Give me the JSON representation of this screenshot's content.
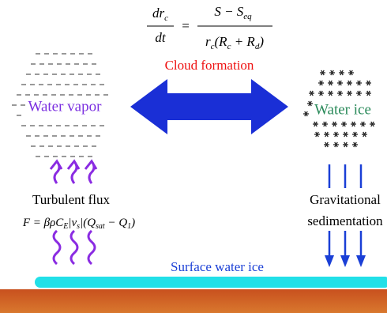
{
  "equation": {
    "lhs_numerator": [
      "dr",
      "c"
    ],
    "lhs_denominator": "dt",
    "equals": "=",
    "rhs_numerator": [
      "S − S",
      "eq"
    ],
    "rhs_denominator": [
      "r",
      "c",
      "(R",
      "c",
      " + R",
      "d",
      ")"
    ]
  },
  "labels": {
    "cloud_formation": "Cloud formation",
    "water_vapor": "Water vapor",
    "water_ice": "Water ice",
    "turbulent_flux": "Turbulent flux",
    "gravitational": "Gravitational",
    "sedimentation": "sedimentation",
    "surface_water_ice": "Surface water ice"
  },
  "flux_formula": [
    "F = βρC",
    "E",
    "|v",
    "s",
    "|(Q",
    "sat",
    " − Q",
    "1",
    ")"
  ]
}
